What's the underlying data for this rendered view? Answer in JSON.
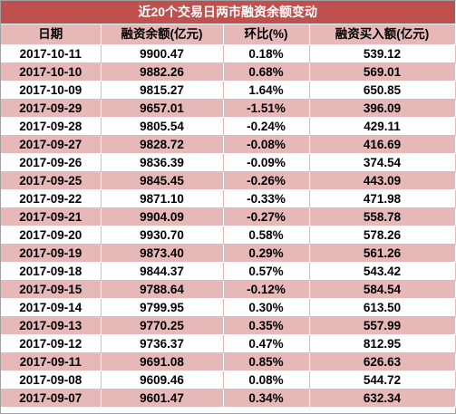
{
  "title": "近20个交易日两市融资余额变动",
  "columns": [
    "日期",
    "融资余额(亿元)",
    "环比(%)",
    "融资买入额(亿元)"
  ],
  "rows": [
    {
      "date": "2017-10-11",
      "balance": "9900.47",
      "change": "0.18%",
      "buy": "539.12"
    },
    {
      "date": "2017-10-10",
      "balance": "9882.26",
      "change": "0.68%",
      "buy": "569.01"
    },
    {
      "date": "2017-10-09",
      "balance": "9815.27",
      "change": "1.64%",
      "buy": "650.85"
    },
    {
      "date": "2017-09-29",
      "balance": "9657.01",
      "change": "-1.51%",
      "buy": "396.09"
    },
    {
      "date": "2017-09-28",
      "balance": "9805.54",
      "change": "-0.24%",
      "buy": "429.11"
    },
    {
      "date": "2017-09-27",
      "balance": "9828.72",
      "change": "-0.08%",
      "buy": "416.69"
    },
    {
      "date": "2017-09-26",
      "balance": "9836.39",
      "change": "-0.09%",
      "buy": "374.54"
    },
    {
      "date": "2017-09-25",
      "balance": "9845.45",
      "change": "-0.26%",
      "buy": "443.09"
    },
    {
      "date": "2017-09-22",
      "balance": "9871.10",
      "change": "-0.33%",
      "buy": "471.98"
    },
    {
      "date": "2017-09-21",
      "balance": "9904.09",
      "change": "-0.27%",
      "buy": "558.78"
    },
    {
      "date": "2017-09-20",
      "balance": "9930.70",
      "change": "0.58%",
      "buy": "578.26"
    },
    {
      "date": "2017-09-19",
      "balance": "9873.40",
      "change": "0.29%",
      "buy": "561.26"
    },
    {
      "date": "2017-09-18",
      "balance": "9844.37",
      "change": "0.57%",
      "buy": "543.42"
    },
    {
      "date": "2017-09-15",
      "balance": "9788.64",
      "change": "-0.12%",
      "buy": "584.54"
    },
    {
      "date": "2017-09-14",
      "balance": "9799.95",
      "change": "0.30%",
      "buy": "613.50"
    },
    {
      "date": "2017-09-13",
      "balance": "9770.25",
      "change": "0.35%",
      "buy": "557.99"
    },
    {
      "date": "2017-09-12",
      "balance": "9736.37",
      "change": "0.47%",
      "buy": "812.95"
    },
    {
      "date": "2017-09-11",
      "balance": "9691.08",
      "change": "0.85%",
      "buy": "626.63"
    },
    {
      "date": "2017-09-08",
      "balance": "9609.46",
      "change": "0.08%",
      "buy": "544.72"
    },
    {
      "date": "2017-09-07",
      "balance": "9601.47",
      "change": "0.34%",
      "buy": "632.34"
    }
  ],
  "colors": {
    "title_bg": "#c0504d",
    "row_pink": "#e6b8b7",
    "row_white": "#ffffff"
  }
}
